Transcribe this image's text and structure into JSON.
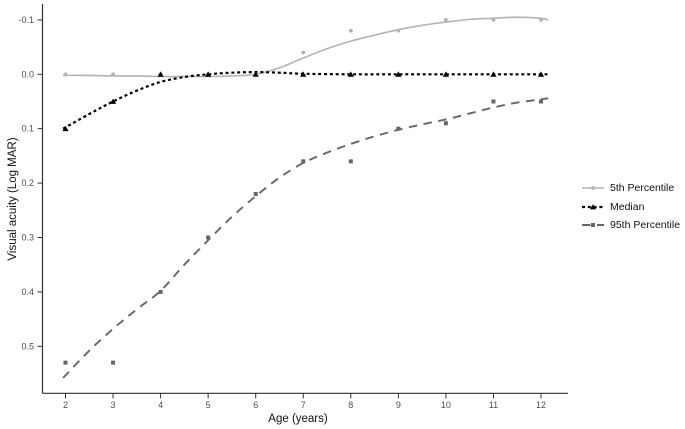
{
  "chart_data": {
    "type": "line",
    "title": "",
    "xlabel": "Age (years)",
    "ylabel": "Visual acuity (Log MAR)",
    "legend_position": "right",
    "grid": "off",
    "y_axis_inverted": true,
    "xlim": [
      1.5,
      12.6
    ],
    "ylim": [
      -0.13,
      0.58
    ],
    "x_ticks": [
      {
        "v": 2,
        "label": "2"
      },
      {
        "v": 3,
        "label": "3"
      },
      {
        "v": 4,
        "label": "4"
      },
      {
        "v": 5,
        "label": "5"
      },
      {
        "v": 6,
        "label": "6"
      },
      {
        "v": 7,
        "label": "7"
      },
      {
        "v": 8,
        "label": "8"
      },
      {
        "v": 9,
        "label": "9"
      },
      {
        "v": 10,
        "label": "10"
      },
      {
        "v": 11,
        "label": "11"
      },
      {
        "v": 12,
        "label": "12"
      }
    ],
    "y_ticks": [
      {
        "v": -0.1,
        "label": "-0.1"
      },
      {
        "v": 0.0,
        "label": "0.0"
      },
      {
        "v": 0.1,
        "label": "0.1"
      },
      {
        "v": 0.2,
        "label": "0.2"
      },
      {
        "v": 0.3,
        "label": "0.3"
      },
      {
        "v": 0.4,
        "label": "0.4"
      },
      {
        "v": 0.5,
        "label": "0.5"
      }
    ],
    "series": [
      {
        "name": "5th Percentile",
        "color": "#b3b3b3",
        "line": "solid",
        "marker": "circle",
        "points": {
          "x": [
            2,
            3,
            4,
            5,
            6,
            7,
            8,
            9,
            10,
            11,
            12
          ],
          "y": [
            0.0,
            0.0,
            0.0,
            0.0,
            0.0,
            -0.04,
            -0.08,
            -0.08,
            -0.1,
            -0.1,
            -0.1
          ]
        },
        "curve": {
          "x": [
            1.95,
            2.5,
            3,
            3.5,
            4,
            4.5,
            5,
            5.5,
            6,
            6.5,
            7,
            7.5,
            8,
            8.5,
            9,
            9.5,
            10,
            10.5,
            11,
            11.5,
            12,
            12.15
          ],
          "y": [
            0.002,
            0.002,
            0.003,
            0.003,
            0.004,
            0.004,
            0.004,
            0.003,
            0.0,
            -0.012,
            -0.03,
            -0.047,
            -0.061,
            -0.072,
            -0.082,
            -0.09,
            -0.096,
            -0.101,
            -0.103,
            -0.105,
            -0.103,
            -0.1
          ]
        }
      },
      {
        "name": "Median",
        "color": "#000000",
        "line": "dash-short",
        "marker": "triangle",
        "points": {
          "x": [
            2,
            3,
            4,
            5,
            6,
            7,
            8,
            9,
            10,
            11,
            12
          ],
          "y": [
            0.1,
            0.05,
            0.0,
            0.0,
            0.0,
            0.0,
            0.0,
            0.0,
            0.0,
            0.0,
            0.0
          ]
        },
        "curve": {
          "x": [
            1.95,
            2.5,
            3,
            3.5,
            4,
            4.5,
            5,
            5.5,
            6,
            6.5,
            7,
            8,
            9,
            10,
            11,
            12,
            12.15
          ],
          "y": [
            0.1,
            0.073,
            0.05,
            0.03,
            0.014,
            0.005,
            0.0,
            -0.003,
            -0.004,
            -0.003,
            -0.001,
            0.0,
            0.0,
            0.0,
            0.0,
            0.0,
            0.0
          ]
        }
      },
      {
        "name": "95th Percentile",
        "color": "#666666",
        "line": "dash-long",
        "marker": "square",
        "points": {
          "x": [
            2,
            3,
            4,
            5,
            6,
            7,
            8,
            9,
            10,
            11,
            12
          ],
          "y": [
            0.53,
            0.53,
            0.4,
            0.3,
            0.22,
            0.16,
            0.16,
            0.1,
            0.09,
            0.05,
            0.05
          ]
        },
        "curve": {
          "x": [
            1.95,
            2.5,
            3,
            3.5,
            4,
            4.5,
            5,
            5.5,
            6,
            6.5,
            7,
            7.5,
            8,
            8.5,
            9,
            9.5,
            10,
            10.5,
            11,
            11.5,
            12,
            12.15
          ],
          "y": [
            0.558,
            0.508,
            0.468,
            0.432,
            0.398,
            0.35,
            0.305,
            0.262,
            0.224,
            0.19,
            0.163,
            0.144,
            0.128,
            0.114,
            0.102,
            0.092,
            0.083,
            0.072,
            0.061,
            0.052,
            0.046,
            0.044
          ]
        }
      }
    ]
  }
}
